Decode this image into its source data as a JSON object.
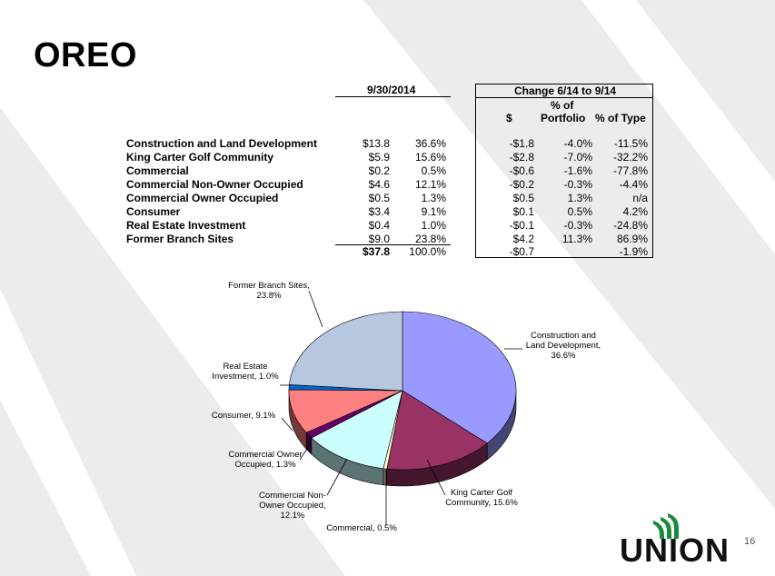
{
  "slide": {
    "title": "OREO",
    "page_number": "16"
  },
  "table": {
    "header_left": "9/30/2014",
    "header_right": "Change 6/14 to 9/14",
    "subheader": {
      "dollar": "$",
      "pct_portfolio_1": "% of",
      "pct_portfolio_2": "Portfolio",
      "pct_type": "% of Type"
    },
    "rows": [
      {
        "label": "Construction and Land Development",
        "amount": "$13.8",
        "pct": "36.6%",
        "chg": "-$1.8",
        "chg_portfolio": "-4.0%",
        "chg_type": "-11.5%"
      },
      {
        "label": "King Carter Golf Community",
        "amount": "$5.9",
        "pct": "15.6%",
        "chg": "-$2.8",
        "chg_portfolio": "-7.0%",
        "chg_type": "-32.2%"
      },
      {
        "label": "Commercial",
        "amount": "$0.2",
        "pct": "0.5%",
        "chg": "-$0.6",
        "chg_portfolio": "-1.6%",
        "chg_type": "-77.8%"
      },
      {
        "label": "Commercial Non-Owner Occupied",
        "amount": "$4.6",
        "pct": "12.1%",
        "chg": "-$0.2",
        "chg_portfolio": "-0.3%",
        "chg_type": "-4.4%"
      },
      {
        "label": "Commercial Owner Occupied",
        "amount": "$0.5",
        "pct": "1.3%",
        "chg": "$0.5",
        "chg_portfolio": "1.3%",
        "chg_type": "n/a"
      },
      {
        "label": "Consumer",
        "amount": "$3.4",
        "pct": "9.1%",
        "chg": "$0.1",
        "chg_portfolio": "0.5%",
        "chg_type": "4.2%"
      },
      {
        "label": "Real Estate Investment",
        "amount": "$0.4",
        "pct": "1.0%",
        "chg": "-$0.1",
        "chg_portfolio": "-0.3%",
        "chg_type": "-24.8%"
      },
      {
        "label": "Former Branch Sites",
        "amount": "$9.0",
        "pct": "23.8%",
        "chg": "$4.2",
        "chg_portfolio": "11.3%",
        "chg_type": "86.9%"
      }
    ],
    "total": {
      "amount": "$37.8",
      "pct": "100.0%",
      "chg": "-$0.7",
      "chg_type": "-1.9%"
    }
  },
  "chart_data": {
    "type": "pie",
    "slices": [
      {
        "name": "Construction and Land Development",
        "value": 36.6,
        "color": "#9999ff",
        "label_lines": [
          "Construction and",
          "Land Development,",
          "36.6%"
        ]
      },
      {
        "name": "King Carter Golf Community",
        "value": 15.6,
        "color": "#993366",
        "label_lines": [
          "King Carter Golf",
          "Community, 15.6%"
        ]
      },
      {
        "name": "Commercial",
        "value": 0.5,
        "color": "#ffffcc",
        "label_lines": [
          "Commercial, 0.5%"
        ]
      },
      {
        "name": "Commercial Non-Owner Occupied",
        "value": 12.1,
        "color": "#ccffff",
        "label_lines": [
          "Commercial Non-",
          "Owner Occupied,",
          "12.1%"
        ]
      },
      {
        "name": "Commercial Owner Occupied",
        "value": 1.3,
        "color": "#660066",
        "label_lines": [
          "Commercial Owner",
          "Occupied, 1.3%"
        ]
      },
      {
        "name": "Consumer",
        "value": 9.1,
        "color": "#ff8080",
        "label_lines": [
          "Consumer, 9.1%"
        ]
      },
      {
        "name": "Real Estate Investment",
        "value": 1.0,
        "color": "#0066cc",
        "label_lines": [
          "Real Estate",
          "Investment, 1.0%"
        ]
      },
      {
        "name": "Former Branch Sites",
        "value": 23.8,
        "color": "#b8c7e0",
        "label_lines": [
          "Former Branch Sites,",
          "23.8%"
        ]
      }
    ]
  },
  "logo": {
    "text": "UNION",
    "accent_color": "#1a8a3c"
  }
}
